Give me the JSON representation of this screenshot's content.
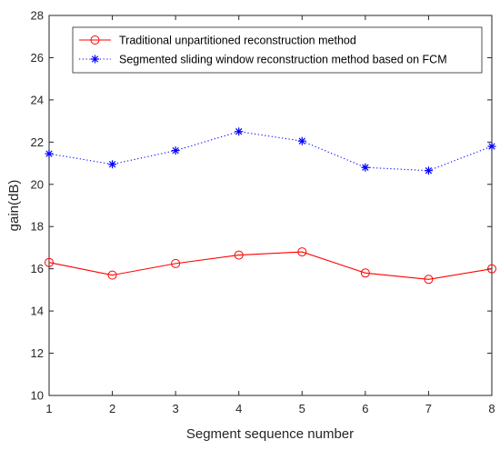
{
  "chart_data": {
    "type": "line",
    "title": "",
    "xlabel": "Segment sequence number",
    "ylabel": "gain(dB)",
    "x": [
      1,
      2,
      3,
      4,
      5,
      6,
      7,
      8
    ],
    "xlim": [
      1,
      8
    ],
    "ylim": [
      10,
      28
    ],
    "xticks": [
      "1",
      "2",
      "3",
      "4",
      "5",
      "6",
      "7",
      "8"
    ],
    "yticks": [
      "10",
      "12",
      "14",
      "16",
      "18",
      "20",
      "22",
      "24",
      "26",
      "28"
    ],
    "grid": false,
    "legend_position": "top-right",
    "series": [
      {
        "name": "Traditional unpartitioned reconstruction method",
        "values": [
          16.3,
          15.7,
          16.25,
          16.65,
          16.8,
          15.8,
          15.5,
          16.0
        ],
        "color": "#ff0000",
        "line_style": "solid",
        "marker": "circle"
      },
      {
        "name": "Segmented sliding window reconstruction method based on FCM",
        "values": [
          21.45,
          20.95,
          21.6,
          22.5,
          22.05,
          20.8,
          20.65,
          21.8
        ],
        "color": "#0000ff",
        "line_style": "dotted",
        "marker": "asterisk"
      }
    ]
  }
}
